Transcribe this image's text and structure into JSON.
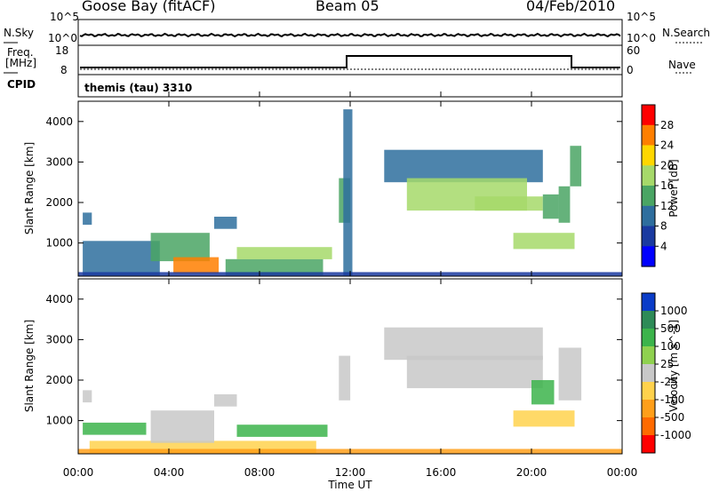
{
  "header": {
    "station": "Goose Bay (fitACF)",
    "beam": "Beam 05",
    "date": "04/Feb/2010"
  },
  "top_panels": {
    "nsky_label": "N.Sky",
    "nsky_ticks": [
      "10^5",
      "10^0"
    ],
    "nsearch_label": "N.Search",
    "nsearch_ticks": [
      "10^5",
      "10^0"
    ],
    "freq_label": "Freq.",
    "freq_unit": "[MHz]",
    "freq_ticks": [
      "18",
      "8"
    ],
    "nave_label": "Nave",
    "nave_ticks": [
      "60",
      "0"
    ],
    "cpid_label": "CPID",
    "cpid_value": "themis (tau) 3310"
  },
  "chart_data": [
    {
      "type": "heatmap",
      "panel": "power",
      "xlabel": "Time UT",
      "ylabel": "Slant Range [km]",
      "x_ticks": [
        "00:00",
        "04:00",
        "08:00",
        "12:00",
        "16:00",
        "20:00",
        "00:00"
      ],
      "y_ticks": [
        1000,
        2000,
        3000,
        4000
      ],
      "xlim_hours": [
        0,
        24
      ],
      "ylim_km": [
        180,
        4500
      ],
      "colorbar": {
        "label": "Power [dB]",
        "ticks": [
          "28",
          "24",
          "20",
          "16",
          "12",
          "8",
          "4"
        ],
        "colors": [
          "#ff0000",
          "#ff7f00",
          "#ffd700",
          "#a6d96a",
          "#4aa564",
          "#2e6e9e",
          "#1a3aa0",
          "#0000ff"
        ]
      },
      "regions": [
        {
          "x": [
            0.2,
            0.6
          ],
          "y": [
            1450,
            1750
          ],
          "level": 2
        },
        {
          "x": [
            0.2,
            3.6
          ],
          "y": [
            200,
            1050
          ],
          "level": 2
        },
        {
          "x": [
            3.2,
            5.8
          ],
          "y": [
            550,
            1250
          ],
          "level": 3
        },
        {
          "x": [
            4.2,
            6.2
          ],
          "y": [
            250,
            650
          ],
          "level": 6
        },
        {
          "x": [
            6.0,
            7.0
          ],
          "y": [
            1350,
            1650
          ],
          "level": 2
        },
        {
          "x": [
            6.5,
            10.8
          ],
          "y": [
            200,
            600
          ],
          "level": 3
        },
        {
          "x": [
            7.0,
            11.2
          ],
          "y": [
            600,
            900
          ],
          "level": 4
        },
        {
          "x": [
            11.5,
            12.0
          ],
          "y": [
            1500,
            2600
          ],
          "level": 3
        },
        {
          "x": [
            11.7,
            12.1
          ],
          "y": [
            200,
            4300
          ],
          "level": 2
        },
        {
          "x": [
            13.5,
            20.5
          ],
          "y": [
            2500,
            3300
          ],
          "level": 2
        },
        {
          "x": [
            14.5,
            19.8
          ],
          "y": [
            1800,
            2600
          ],
          "level": 4
        },
        {
          "x": [
            17.5,
            20.5
          ],
          "y": [
            1800,
            2150
          ],
          "level": 4
        },
        {
          "x": [
            20.5,
            21.2
          ],
          "y": [
            1600,
            2200
          ],
          "level": 3
        },
        {
          "x": [
            21.2,
            21.7
          ],
          "y": [
            1500,
            2400
          ],
          "level": 3
        },
        {
          "x": [
            21.7,
            22.2
          ],
          "y": [
            2400,
            3400
          ],
          "level": 3
        },
        {
          "x": [
            19.2,
            21.9
          ],
          "y": [
            850,
            1250
          ],
          "level": 4
        },
        {
          "x": [
            0,
            24
          ],
          "y": [
            180,
            280
          ],
          "level": 1
        }
      ]
    },
    {
      "type": "heatmap",
      "panel": "velocity",
      "xlabel": "Time UT",
      "ylabel": "Slant Range [km]",
      "x_ticks": [
        "00:00",
        "04:00",
        "08:00",
        "12:00",
        "16:00",
        "20:00",
        "00:00"
      ],
      "y_ticks": [
        1000,
        2000,
        3000,
        4000
      ],
      "xlim_hours": [
        0,
        24
      ],
      "ylim_km": [
        180,
        4500
      ],
      "colorbar": {
        "label": "Velocity [m s^-1]",
        "ticks": [
          "1000",
          "500",
          "100",
          "25",
          "-25",
          "-100",
          "-500",
          "-1000"
        ],
        "colors": [
          "#0a3cc8",
          "#2e8b57",
          "#3cb44b",
          "#8fd14f",
          "#c8c8c8",
          "#ffd24d",
          "#ff9f1a",
          "#ff6a00",
          "#ff0000"
        ]
      },
      "regions": [
        {
          "x": [
            0.2,
            0.6
          ],
          "y": [
            1450,
            1750
          ],
          "level": 4
        },
        {
          "x": [
            0.2,
            3.0
          ],
          "y": [
            650,
            950
          ],
          "level": 6
        },
        {
          "x": [
            0.5,
            10.5
          ],
          "y": [
            200,
            500
          ],
          "level": 3
        },
        {
          "x": [
            3.2,
            6.0
          ],
          "y": [
            450,
            1250
          ],
          "level": 4
        },
        {
          "x": [
            6.0,
            7.0
          ],
          "y": [
            1350,
            1650
          ],
          "level": 4
        },
        {
          "x": [
            7.0,
            11.0
          ],
          "y": [
            600,
            900
          ],
          "level": 6
        },
        {
          "x": [
            11.5,
            12.0
          ],
          "y": [
            1500,
            2600
          ],
          "level": 4
        },
        {
          "x": [
            13.5,
            20.5
          ],
          "y": [
            2500,
            3300
          ],
          "level": 4
        },
        {
          "x": [
            14.5,
            20.5
          ],
          "y": [
            1800,
            2600
          ],
          "level": 4
        },
        {
          "x": [
            20.0,
            21.0
          ],
          "y": [
            1400,
            2000
          ],
          "level": 6
        },
        {
          "x": [
            21.2,
            22.2
          ],
          "y": [
            1500,
            2800
          ],
          "level": 4
        },
        {
          "x": [
            19.2,
            21.9
          ],
          "y": [
            850,
            1250
          ],
          "level": 3
        },
        {
          "x": [
            0,
            24
          ],
          "y": [
            180,
            300
          ],
          "level": 2
        }
      ]
    }
  ]
}
